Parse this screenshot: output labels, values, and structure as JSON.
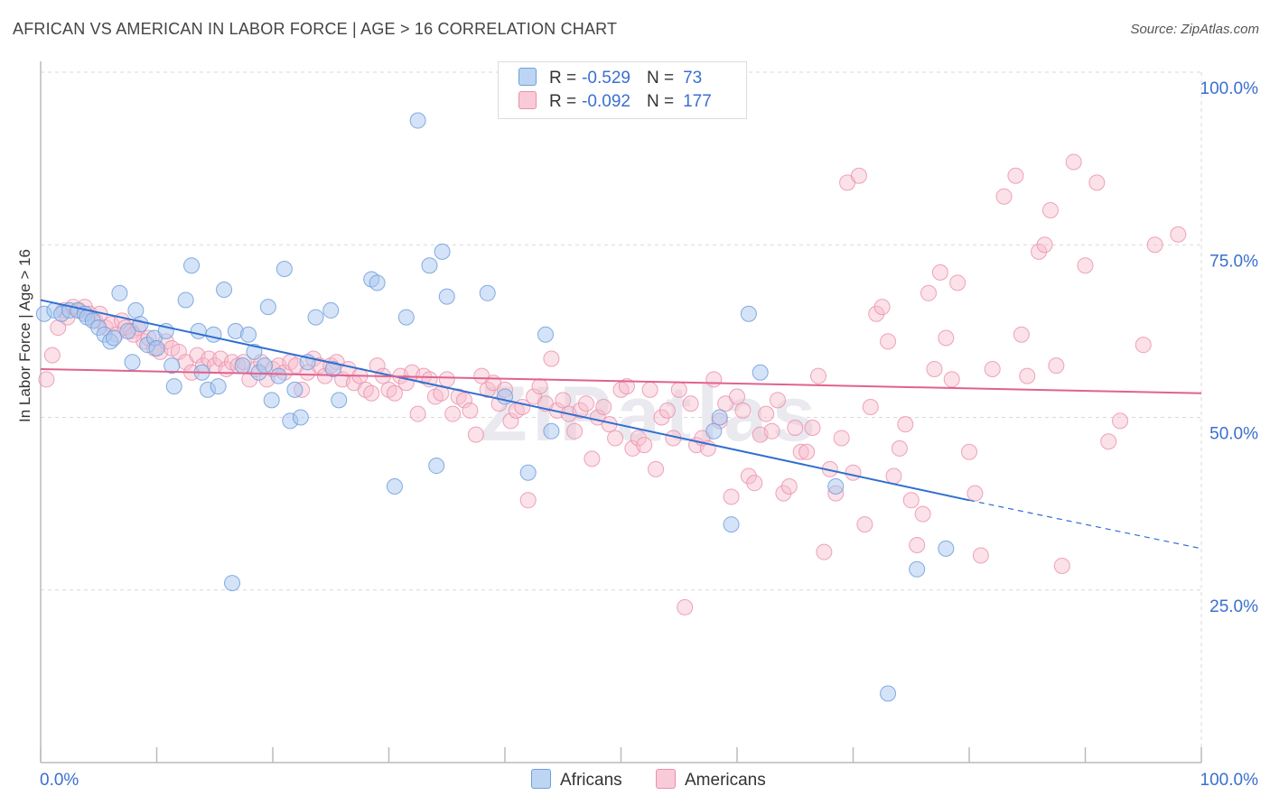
{
  "header": {
    "title": "AFRICAN VS AMERICAN IN LABOR FORCE | AGE > 16 CORRELATION CHART",
    "source": "Source: ZipAtlas.com"
  },
  "legend": {
    "africans": {
      "r_label": "R =",
      "r_value": "-0.529",
      "n_label": "N =",
      "n_value": "73"
    },
    "americans": {
      "r_label": "R =",
      "r_value": "-0.092",
      "n_label": "N =",
      "n_value": "177"
    }
  },
  "colors": {
    "africans_fill": "#a9c8f0",
    "africans_stroke": "#6f9fdc",
    "africans_line": "#2f6fd0",
    "americans_fill": "#f7bccd",
    "americans_stroke": "#ea8fab",
    "americans_line": "#e0628f",
    "tick_label": "#3a6fd0",
    "grid": "#d8d8d8"
  },
  "chart_data": {
    "type": "scatter",
    "ylabel": "In Labor Force | Age > 16",
    "xlim": [
      0,
      100
    ],
    "ylim": [
      0,
      100
    ],
    "x_tick_labels": [
      {
        "v": 0,
        "t": "0.0%"
      },
      {
        "v": 100,
        "t": "100.0%"
      }
    ],
    "y_tick_labels": [
      {
        "v": 25,
        "t": "25.0%"
      },
      {
        "v": 50,
        "t": "50.0%"
      },
      {
        "v": 75,
        "t": "75.0%"
      },
      {
        "v": 100,
        "t": "100.0%"
      }
    ],
    "grid": true,
    "legend_position": "top-center",
    "series": [
      {
        "name": "Africans",
        "trend": {
          "x0": 0,
          "y0": 67,
          "x1": 80,
          "y1": 38,
          "dash_to_x": 100,
          "dash_to_y": 31
        },
        "points": [
          [
            0.3,
            65
          ],
          [
            1.2,
            65.5
          ],
          [
            1.8,
            65
          ],
          [
            2.5,
            65.5
          ],
          [
            3.2,
            65.5
          ],
          [
            3.8,
            65
          ],
          [
            4,
            64.5
          ],
          [
            4.5,
            64
          ],
          [
            5,
            63
          ],
          [
            5.5,
            62
          ],
          [
            6,
            61
          ],
          [
            6.3,
            61.5
          ],
          [
            6.8,
            68
          ],
          [
            7.5,
            62.5
          ],
          [
            7.9,
            58
          ],
          [
            8.2,
            65.5
          ],
          [
            8.6,
            63.5
          ],
          [
            9.2,
            60.5
          ],
          [
            9.8,
            61.5
          ],
          [
            10,
            60
          ],
          [
            10.8,
            62.5
          ],
          [
            11.5,
            54.5
          ],
          [
            11.3,
            57.5
          ],
          [
            12.5,
            67
          ],
          [
            13,
            72
          ],
          [
            13.6,
            62.5
          ],
          [
            13.9,
            56.5
          ],
          [
            14.4,
            54
          ],
          [
            14.9,
            62
          ],
          [
            15.3,
            54.5
          ],
          [
            15.8,
            68.5
          ],
          [
            16.5,
            26
          ],
          [
            16.8,
            62.5
          ],
          [
            17.4,
            57.5
          ],
          [
            17.9,
            62
          ],
          [
            18.4,
            59.5
          ],
          [
            18.8,
            56.5
          ],
          [
            19.3,
            57.5
          ],
          [
            19.6,
            66
          ],
          [
            19.9,
            52.5
          ],
          [
            20.5,
            56
          ],
          [
            21,
            71.5
          ],
          [
            21.5,
            49.5
          ],
          [
            21.9,
            54
          ],
          [
            22.4,
            50
          ],
          [
            23,
            58
          ],
          [
            23.7,
            64.5
          ],
          [
            25,
            65.5
          ],
          [
            25.7,
            52.5
          ],
          [
            25.2,
            57
          ],
          [
            28.5,
            70
          ],
          [
            29,
            69.5
          ],
          [
            30.5,
            40
          ],
          [
            31.5,
            64.5
          ],
          [
            32.5,
            93
          ],
          [
            33.5,
            72
          ],
          [
            34.1,
            43
          ],
          [
            34.6,
            74
          ],
          [
            35,
            67.5
          ],
          [
            38.5,
            68
          ],
          [
            42,
            42
          ],
          [
            43.5,
            62
          ],
          [
            44,
            48
          ],
          [
            58,
            48
          ],
          [
            59.5,
            34.5
          ],
          [
            58.5,
            50
          ],
          [
            61,
            65
          ],
          [
            62,
            56.5
          ],
          [
            68.5,
            40
          ],
          [
            73,
            10
          ],
          [
            75.5,
            28
          ],
          [
            78,
            31
          ],
          [
            40,
            53
          ]
        ]
      },
      {
        "name": "Americans",
        "trend": {
          "x0": 0,
          "y0": 57,
          "x1": 100,
          "y1": 53.5
        },
        "points": [
          [
            0.5,
            55.5
          ],
          [
            1,
            59
          ],
          [
            1.5,
            63
          ],
          [
            2,
            65.5
          ],
          [
            2.3,
            64.5
          ],
          [
            2.8,
            66
          ],
          [
            3.3,
            65.5
          ],
          [
            3.8,
            66
          ],
          [
            4.2,
            65
          ],
          [
            4.7,
            64
          ],
          [
            5.1,
            65
          ],
          [
            5.6,
            63
          ],
          [
            6.1,
            63.5
          ],
          [
            6.5,
            62
          ],
          [
            7,
            64
          ],
          [
            7.3,
            63
          ],
          [
            7.8,
            62.5
          ],
          [
            8.4,
            63
          ],
          [
            8.9,
            61
          ],
          [
            9.3,
            61.5
          ],
          [
            9.8,
            60
          ],
          [
            10.3,
            59.5
          ],
          [
            10.8,
            61
          ],
          [
            11.3,
            60
          ],
          [
            11.9,
            59.5
          ],
          [
            12.5,
            58
          ],
          [
            13,
            56.5
          ],
          [
            13.5,
            59
          ],
          [
            14,
            57.5
          ],
          [
            14.5,
            58.5
          ],
          [
            15,
            57.5
          ],
          [
            15.5,
            58.5
          ],
          [
            16,
            57
          ],
          [
            16.5,
            58
          ],
          [
            17,
            57.5
          ],
          [
            17.5,
            58
          ],
          [
            18,
            55.5
          ],
          [
            18.5,
            57
          ],
          [
            19,
            58
          ],
          [
            19.5,
            55.5
          ],
          [
            20,
            57
          ],
          [
            20.5,
            57.5
          ],
          [
            21,
            56.5
          ],
          [
            21.5,
            58
          ],
          [
            22,
            57.5
          ],
          [
            22.5,
            54
          ],
          [
            23,
            56.5
          ],
          [
            23.5,
            58.5
          ],
          [
            24,
            57.5
          ],
          [
            24.5,
            56
          ],
          [
            25,
            57.5
          ],
          [
            25.5,
            58
          ],
          [
            26,
            55.5
          ],
          [
            26.5,
            57
          ],
          [
            27,
            55
          ],
          [
            27.5,
            56
          ],
          [
            28,
            54
          ],
          [
            28.5,
            53.5
          ],
          [
            29,
            57.5
          ],
          [
            29.5,
            56
          ],
          [
            30,
            54
          ],
          [
            30.5,
            53.5
          ],
          [
            31,
            56
          ],
          [
            31.5,
            55
          ],
          [
            32,
            56.5
          ],
          [
            32.5,
            50.5
          ],
          [
            33,
            56
          ],
          [
            33.5,
            55.5
          ],
          [
            34,
            53
          ],
          [
            34.5,
            53.5
          ],
          [
            35,
            55.5
          ],
          [
            35.5,
            50.5
          ],
          [
            36,
            53
          ],
          [
            36.5,
            52.5
          ],
          [
            37,
            51
          ],
          [
            37.5,
            47.5
          ],
          [
            38,
            56
          ],
          [
            38.5,
            54
          ],
          [
            39,
            55
          ],
          [
            39.5,
            52
          ],
          [
            40,
            54
          ],
          [
            40.5,
            49.5
          ],
          [
            41,
            51
          ],
          [
            41.5,
            51.5
          ],
          [
            42,
            38
          ],
          [
            42.5,
            53
          ],
          [
            43,
            54.5
          ],
          [
            43.5,
            52
          ],
          [
            44,
            58.5
          ],
          [
            44.5,
            51
          ],
          [
            45,
            52.5
          ],
          [
            45.5,
            50.5
          ],
          [
            46,
            48
          ],
          [
            46.5,
            51
          ],
          [
            47,
            52
          ],
          [
            47.5,
            44
          ],
          [
            48,
            50
          ],
          [
            48.5,
            51.5
          ],
          [
            49,
            49
          ],
          [
            49.5,
            47
          ],
          [
            50,
            54
          ],
          [
            50.5,
            54.5
          ],
          [
            51,
            45.5
          ],
          [
            51.5,
            47
          ],
          [
            52,
            46
          ],
          [
            52.5,
            54
          ],
          [
            53,
            42.5
          ],
          [
            53.5,
            50
          ],
          [
            54,
            51
          ],
          [
            54.5,
            47
          ],
          [
            55,
            54
          ],
          [
            55.5,
            22.5
          ],
          [
            56,
            52
          ],
          [
            56.5,
            46
          ],
          [
            57,
            47
          ],
          [
            57.5,
            45.5
          ],
          [
            58,
            55.5
          ],
          [
            58.5,
            49.5
          ],
          [
            59,
            52
          ],
          [
            59.5,
            38.5
          ],
          [
            60,
            53
          ],
          [
            60.5,
            51
          ],
          [
            61,
            41.5
          ],
          [
            61.5,
            40.5
          ],
          [
            62,
            47.5
          ],
          [
            62.5,
            50.5
          ],
          [
            63,
            48
          ],
          [
            63.5,
            52.5
          ],
          [
            64,
            39
          ],
          [
            64.5,
            40
          ],
          [
            65,
            48.5
          ],
          [
            65.5,
            45
          ],
          [
            66,
            45
          ],
          [
            66.5,
            48.5
          ],
          [
            67,
            56
          ],
          [
            67.5,
            30.5
          ],
          [
            68,
            42.5
          ],
          [
            68.5,
            39
          ],
          [
            69,
            47
          ],
          [
            69.5,
            84
          ],
          [
            70,
            42
          ],
          [
            70.5,
            85
          ],
          [
            71,
            34.5
          ],
          [
            71.5,
            51.5
          ],
          [
            72,
            65
          ],
          [
            72.5,
            66
          ],
          [
            73,
            61
          ],
          [
            73.5,
            41.5
          ],
          [
            74,
            45.5
          ],
          [
            74.5,
            49
          ],
          [
            75,
            38
          ],
          [
            75.5,
            31.5
          ],
          [
            76,
            36
          ],
          [
            76.5,
            68
          ],
          [
            77,
            57
          ],
          [
            77.5,
            71
          ],
          [
            78,
            61.5
          ],
          [
            78.5,
            55.5
          ],
          [
            79,
            69.5
          ],
          [
            80,
            45
          ],
          [
            80.5,
            39
          ],
          [
            81,
            30
          ],
          [
            82,
            57
          ],
          [
            83,
            82
          ],
          [
            84,
            85
          ],
          [
            84.5,
            62
          ],
          [
            85,
            56
          ],
          [
            86,
            74
          ],
          [
            86.5,
            75
          ],
          [
            87,
            80
          ],
          [
            87.5,
            57.5
          ],
          [
            88,
            28.5
          ],
          [
            89,
            87
          ],
          [
            90,
            72
          ],
          [
            91,
            84
          ],
          [
            92,
            46.5
          ],
          [
            93,
            49.5
          ],
          [
            95,
            60.5
          ],
          [
            96,
            75
          ],
          [
            98,
            76.5
          ],
          [
            8,
            62
          ]
        ]
      }
    ]
  },
  "bottom_legend": {
    "africans": "Africans",
    "americans": "Americans"
  },
  "watermark": "ZIPatlas"
}
